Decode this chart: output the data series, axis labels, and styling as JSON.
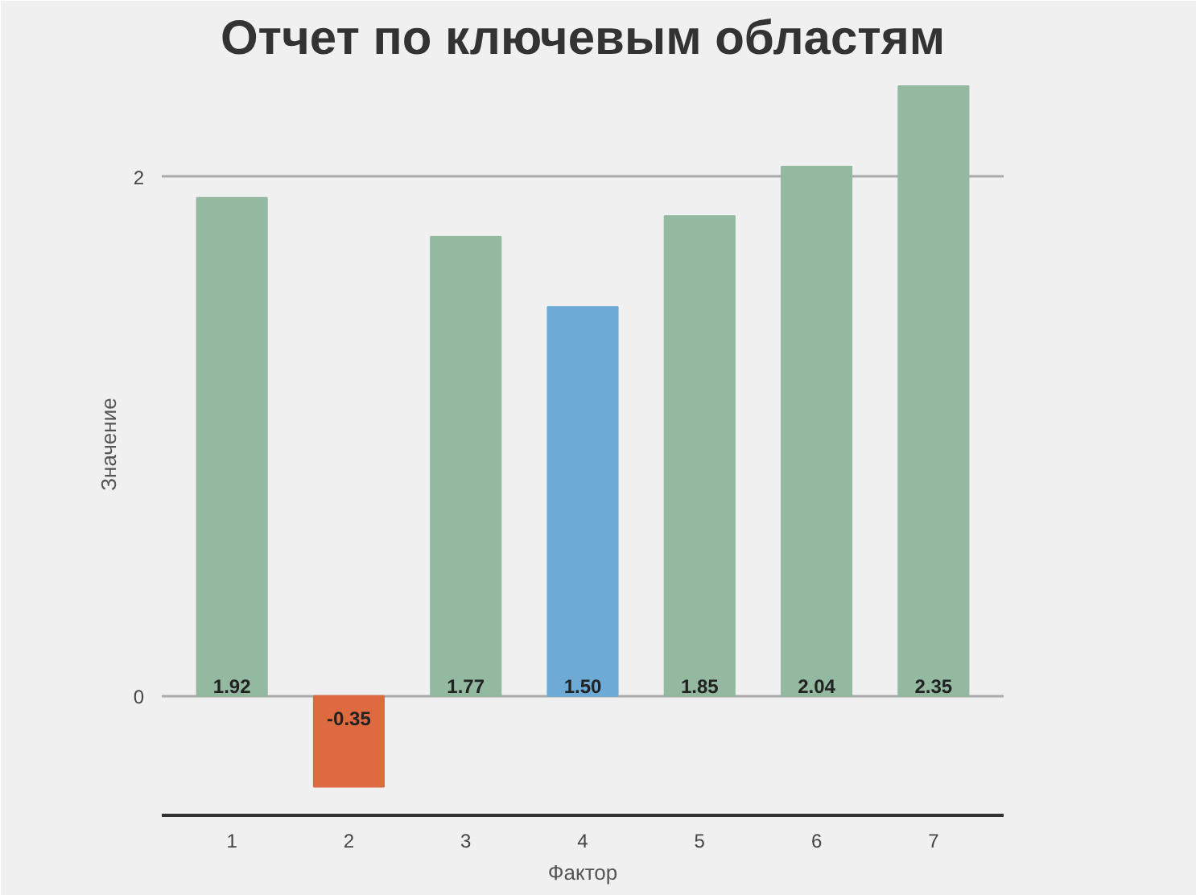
{
  "chart_data": {
    "type": "bar",
    "title": "Отчет по ключевым областям",
    "xlabel": "Фактор",
    "ylabel": "Значение",
    "categories": [
      "1",
      "2",
      "3",
      "4",
      "5",
      "6",
      "7"
    ],
    "values": [
      1.92,
      -0.35,
      1.77,
      1.5,
      1.85,
      2.04,
      2.35
    ],
    "colors": [
      "#93b9a0",
      "#de6a40",
      "#93b9a0",
      "#6eaad6",
      "#93b9a0",
      "#93b9a0",
      "#93b9a0"
    ],
    "value_labels": [
      "1.92",
      "-0.35",
      "1.77",
      "1.50",
      "1.85",
      "2.04",
      "2.35"
    ],
    "ylim": [
      -0.46,
      2.4
    ],
    "yticks": [
      0,
      2
    ],
    "grid": "y"
  }
}
